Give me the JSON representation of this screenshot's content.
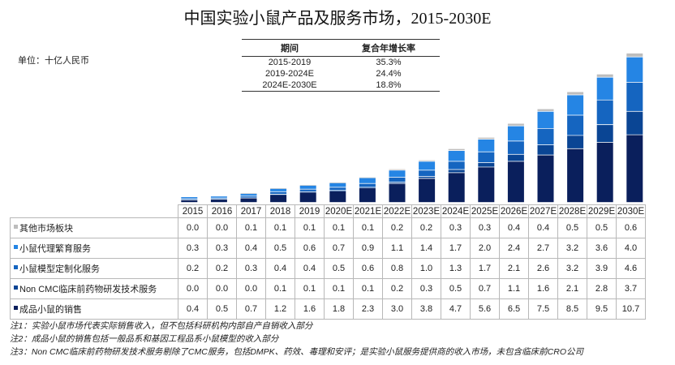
{
  "title": "中国实验小鼠产品及服务市场，2015-2030E",
  "unit": "单位：十亿人民币",
  "cagr_table": {
    "headers": [
      "期间",
      "复合年增长率"
    ],
    "rows": [
      [
        "2015-2019",
        "35.3%"
      ],
      [
        "2019-2024E",
        "24.4%"
      ],
      [
        "2024E-2030E",
        "18.8%"
      ]
    ]
  },
  "chart_data": {
    "type": "bar",
    "stacked": true,
    "title": "中国实验小鼠产品及服务市场，2015-2030E",
    "ylabel": "单位：十亿人民币",
    "xlabel": "",
    "categories": [
      "2015",
      "2016",
      "2017",
      "2018",
      "2019",
      "2020E",
      "2021E",
      "2022E",
      "2023E",
      "2024E",
      "2025E",
      "2026E",
      "2027E",
      "2028E",
      "2029E",
      "2030E"
    ],
    "series": [
      {
        "name": "成品小鼠的销售",
        "color": "#0a1f5c",
        "values": [
          0.4,
          0.5,
          0.7,
          1.2,
          1.6,
          1.8,
          2.3,
          3.0,
          3.8,
          4.7,
          5.6,
          6.5,
          7.5,
          8.5,
          9.5,
          10.7
        ]
      },
      {
        "name": "Non CMC临床前药物研发技术服务",
        "color": "#0a4594",
        "values": [
          0.0,
          0.0,
          0.0,
          0.1,
          0.1,
          0.1,
          0.1,
          0.2,
          0.3,
          0.5,
          0.7,
          1.1,
          1.6,
          2.1,
          2.8,
          3.7
        ]
      },
      {
        "name": "小鼠模型定制化服务",
        "color": "#1565c0",
        "values": [
          0.2,
          0.2,
          0.3,
          0.4,
          0.4,
          0.5,
          0.6,
          0.8,
          1.0,
          1.3,
          1.7,
          2.1,
          2.6,
          3.2,
          3.9,
          4.6
        ]
      },
      {
        "name": "小鼠代理繁育服务",
        "color": "#2585e4",
        "values": [
          0.3,
          0.3,
          0.4,
          0.5,
          0.6,
          0.7,
          0.9,
          1.1,
          1.4,
          1.7,
          2.0,
          2.4,
          2.7,
          3.2,
          3.6,
          4.0
        ]
      },
      {
        "name": "其他市场板块",
        "color": "#bdbdbd",
        "values": [
          0.0,
          0.0,
          0.1,
          0.1,
          0.1,
          0.1,
          0.1,
          0.2,
          0.2,
          0.3,
          0.3,
          0.4,
          0.4,
          0.5,
          0.5,
          0.6
        ]
      }
    ],
    "table_row_order": [
      "其他市场板块",
      "小鼠代理繁育服务",
      "小鼠模型定制化服务",
      "Non CMC临床前药物研发技术服务",
      "成品小鼠的销售"
    ],
    "grid": false,
    "legend": "left, embedded in data table"
  },
  "notes": [
    "注1：实验小鼠市场代表实际销售收入，但不包括科研机构内部自产自销收入部分",
    "注2：成品小鼠的销售包括一般品系和基因工程品系小鼠模型的收入部分",
    "注3：Non CMC临床前药物研发技术服务剔除了CMC服务，包括DMPK、药效、毒理和安评；是实验小鼠服务提供商的收入市场，未包含临床前CRO公司"
  ]
}
